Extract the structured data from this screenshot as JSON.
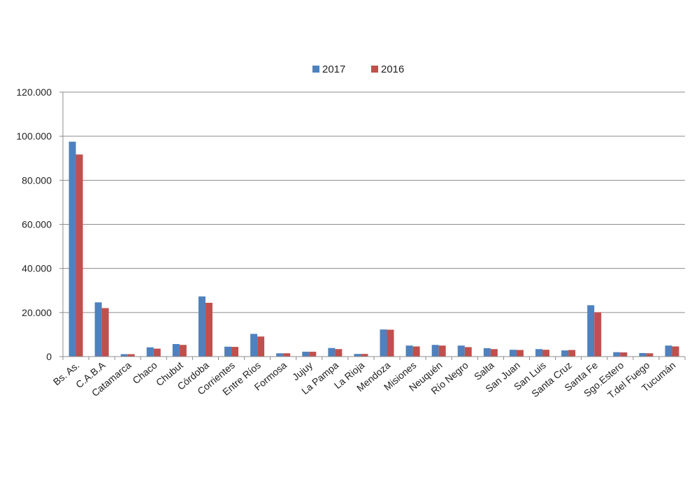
{
  "chart_data": {
    "type": "bar",
    "title": "",
    "xlabel": "",
    "ylabel": "",
    "categories": [
      "Bs. As.",
      "C.A.B.A",
      "Catamarca",
      "Chaco",
      "Chubut",
      "Córdoba",
      "Corrientes",
      "Entre Ríos",
      "Formosa",
      "Jujuy",
      "La Pampa",
      "La Rioja",
      "Mendoza",
      "Misiones",
      "Neuquén",
      "Río Negro",
      "Salta",
      "San Juan",
      "San Luis",
      "Santa Cruz",
      "Santa Fe",
      "Sgo.Estero",
      "T.del Fuego",
      "Tucumán"
    ],
    "series": [
      {
        "name": "2017",
        "color": "#4f81bd",
        "values": [
          97500,
          24600,
          1100,
          4200,
          5700,
          27300,
          4500,
          10300,
          1500,
          2200,
          3900,
          1200,
          12300,
          5000,
          5300,
          5000,
          3800,
          3100,
          3400,
          2800,
          23300,
          2000,
          1600,
          5000
        ]
      },
      {
        "name": "2016",
        "color": "#c0504d",
        "values": [
          91700,
          22000,
          1100,
          3600,
          5300,
          24400,
          4400,
          9100,
          1500,
          2200,
          3400,
          1200,
          12200,
          4600,
          5000,
          4300,
          3400,
          3000,
          3100,
          3000,
          20100,
          1900,
          1500,
          4600
        ]
      }
    ],
    "ylim": [
      0,
      120000
    ],
    "yticks": [
      0,
      20000,
      40000,
      60000,
      80000,
      100000,
      120000
    ],
    "ytick_labels": [
      "0",
      "20.000",
      "40.000",
      "60.000",
      "80.000",
      "100.000",
      "120.000"
    ],
    "grid": true,
    "legend_position": "top-center"
  }
}
